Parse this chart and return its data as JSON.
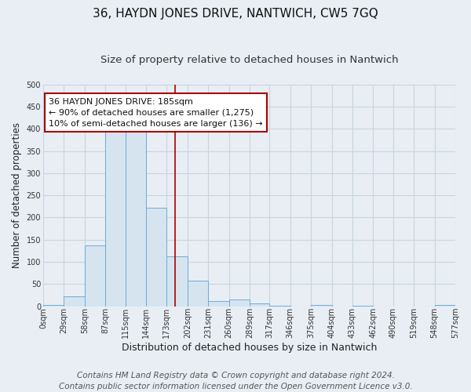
{
  "title": "36, HAYDN JONES DRIVE, NANTWICH, CW5 7GQ",
  "subtitle": "Size of property relative to detached houses in Nantwich",
  "xlabel": "Distribution of detached houses by size in Nantwich",
  "ylabel": "Number of detached properties",
  "bar_edges": [
    0,
    29,
    58,
    87,
    115,
    144,
    173,
    202,
    231,
    260,
    289,
    317,
    346,
    375,
    404,
    433,
    462,
    490,
    519,
    548,
    577
  ],
  "bar_heights": [
    3,
    22,
    138,
    415,
    415,
    222,
    113,
    57,
    12,
    15,
    6,
    1,
    0,
    2,
    0,
    1,
    0,
    0,
    0,
    2
  ],
  "bar_color": "#d6e4f0",
  "bar_edgecolor": "#6aaed6",
  "vline_x": 185,
  "vline_color": "#aa0000",
  "annotation_line1": "36 HAYDN JONES DRIVE: 185sqm",
  "annotation_line2": "← 90% of detached houses are smaller (1,275)",
  "annotation_line3": "10% of semi-detached houses are larger (136) →",
  "annotation_box_edgecolor": "#aa0000",
  "annotation_box_facecolor": "#ffffff",
  "ylim": [
    0,
    500
  ],
  "xlim": [
    0,
    577
  ],
  "tick_labels": [
    "0sqm",
    "29sqm",
    "58sqm",
    "87sqm",
    "115sqm",
    "144sqm",
    "173sqm",
    "202sqm",
    "231sqm",
    "260sqm",
    "289sqm",
    "317sqm",
    "346sqm",
    "375sqm",
    "404sqm",
    "433sqm",
    "462sqm",
    "490sqm",
    "519sqm",
    "548sqm",
    "577sqm"
  ],
  "tick_positions": [
    0,
    29,
    58,
    87,
    115,
    144,
    173,
    202,
    231,
    260,
    289,
    317,
    346,
    375,
    404,
    433,
    462,
    490,
    519,
    548,
    577
  ],
  "ytick_positions": [
    0,
    50,
    100,
    150,
    200,
    250,
    300,
    350,
    400,
    450,
    500
  ],
  "footer_line1": "Contains HM Land Registry data © Crown copyright and database right 2024.",
  "footer_line2": "Contains public sector information licensed under the Open Government Licence v3.0.",
  "background_color": "#e8eef4",
  "plot_background": "#e8eef4",
  "grid_color": "#c8d4e0",
  "title_fontsize": 11,
  "subtitle_fontsize": 9.5,
  "xlabel_fontsize": 9,
  "ylabel_fontsize": 8.5,
  "tick_fontsize": 7,
  "annotation_fontsize": 8,
  "footer_fontsize": 7.5
}
